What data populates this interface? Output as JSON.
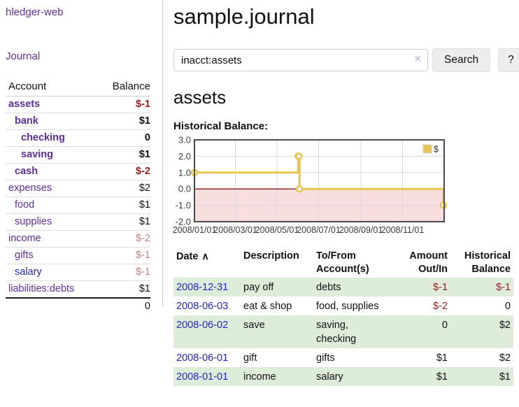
{
  "sidebar": {
    "brand": "hledger-web",
    "nav_link": "Journal",
    "table": {
      "account_header": "Account",
      "balance_header": "Balance",
      "accounts": [
        {
          "name": "assets",
          "level": 1,
          "bold": true,
          "link_class": "purple",
          "balance": "$-1",
          "balance_class": "neg-strong"
        },
        {
          "name": "bank",
          "level": 2,
          "bold": true,
          "link_class": "purple",
          "balance": "$1",
          "balance_class": "pos"
        },
        {
          "name": "checking",
          "level": 3,
          "bold": true,
          "link_class": "purple",
          "balance": "0",
          "balance_class": "pos"
        },
        {
          "name": "saving",
          "level": 3,
          "bold": true,
          "link_class": "purple",
          "balance": "$1",
          "balance_class": "pos"
        },
        {
          "name": "cash",
          "level": 2,
          "bold": true,
          "link_class": "purple",
          "balance": "$-2",
          "balance_class": "neg-strong"
        },
        {
          "name": "expenses",
          "level": 1,
          "bold": false,
          "link_class": "purple",
          "balance": "$2",
          "balance_class": "pos"
        },
        {
          "name": "food",
          "level": 2,
          "bold": false,
          "link_class": "purple",
          "balance": "$1",
          "balance_class": "pos"
        },
        {
          "name": "supplies",
          "level": 2,
          "bold": false,
          "link_class": "purple",
          "balance": "$1",
          "balance_class": "pos"
        },
        {
          "name": "income",
          "level": 1,
          "bold": false,
          "link_class": "purple",
          "balance": "$-2",
          "balance_class": "neg-soft"
        },
        {
          "name": "gifts",
          "level": 2,
          "bold": false,
          "link_class": "purple",
          "balance": "$-1",
          "balance_class": "neg-soft"
        },
        {
          "name": "salary",
          "level": 2,
          "bold": false,
          "link_class": "blue",
          "balance": "$-1",
          "balance_class": "neg-soft"
        },
        {
          "name": "liabilities:debts",
          "level": 1,
          "bold": false,
          "link_class": "purple",
          "balance": "$1",
          "balance_class": "pos"
        }
      ],
      "total": "0"
    }
  },
  "header": {
    "title": "sample.journal"
  },
  "search": {
    "value": "inacct:assets",
    "clear_icon": "×",
    "button_label": "Search",
    "help_label": "?"
  },
  "main": {
    "account_heading": "assets",
    "chart_label": "Historical Balance:"
  },
  "chart_data": {
    "type": "line",
    "step": true,
    "series": [
      {
        "name": "$",
        "color": "#e8c34e",
        "points": [
          {
            "date": "2008-01-01",
            "value": 1
          },
          {
            "date": "2008-06-01",
            "value": 2
          },
          {
            "date": "2008-06-02",
            "value": 2
          },
          {
            "date": "2008-06-03",
            "value": 0
          },
          {
            "date": "2008-12-31",
            "value": -1
          }
        ]
      }
    ],
    "x_range": [
      "2008-01-01",
      "2009-01-01"
    ],
    "ylim": [
      -2,
      3
    ],
    "y_ticks": [
      3,
      2,
      1,
      0,
      -1,
      -2
    ],
    "y_tick_labels": [
      "3.0",
      "2.0",
      "1.0",
      "0.0",
      "-1.0",
      "-2.0"
    ],
    "x_tick_dates": [
      "2008-01-01",
      "2008-03-01",
      "2008-05-01",
      "2008-07-01",
      "2008-09-01",
      "2008-11-01"
    ],
    "x_tick_labels": [
      "2008/01/01",
      "2008/03/01",
      "2008/05/01",
      "2008/07/01",
      "2008/09/01",
      "2008/11/01"
    ],
    "legend": {
      "label": "$",
      "position": "top-right"
    },
    "grid": true,
    "negative_region_color": "#f8dede",
    "zero_line_color": "#8b1a1a",
    "plot_border_color": "#4a4a4a",
    "gridline_color": "#d9d9d9"
  },
  "register": {
    "headers": {
      "date": "Date",
      "sort_icon": "∧",
      "description": "Description",
      "accounts": "To/From Account(s)",
      "amount": "Amount Out/In",
      "balance": "Historical Balance"
    },
    "rows": [
      {
        "date": "2008-12-31",
        "description": "pay off",
        "accounts": "debts",
        "amount": "$-1",
        "amount_neg": true,
        "balance": "$-1",
        "balance_neg": true,
        "shaded": true
      },
      {
        "date": "2008-06-03",
        "description": "eat & shop",
        "accounts": "food, supplies",
        "amount": "$-2",
        "amount_neg": true,
        "balance": "0",
        "balance_neg": false,
        "shaded": false
      },
      {
        "date": "2008-06-02",
        "description": "save",
        "accounts": "saving, checking",
        "amount": "0",
        "amount_neg": false,
        "balance": "$2",
        "balance_neg": false,
        "shaded": true
      },
      {
        "date": "2008-06-01",
        "description": "gift",
        "accounts": "gifts",
        "amount": "$1",
        "amount_neg": false,
        "balance": "$2",
        "balance_neg": false,
        "shaded": false
      },
      {
        "date": "2008-01-01",
        "description": "income",
        "accounts": "salary",
        "amount": "$1",
        "amount_neg": false,
        "balance": "$1",
        "balance_neg": false,
        "shaded": true
      }
    ]
  },
  "colors": {
    "link_purple": "#5f2da0",
    "link_blue": "#2323cc",
    "negative_strong": "#9a1c1c",
    "negative_soft": "#c28383",
    "row_green": "#ddedda",
    "chart_gold": "#e8c34e"
  }
}
